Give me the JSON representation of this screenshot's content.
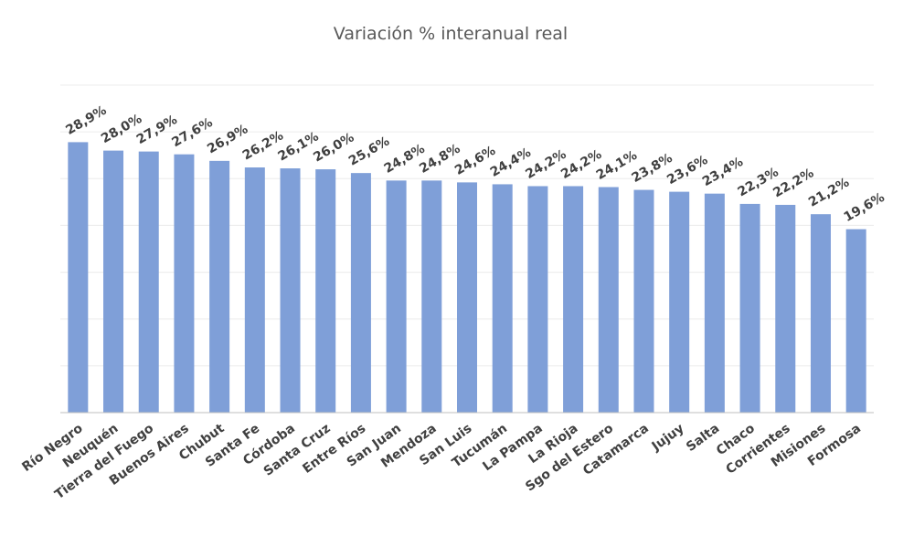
{
  "chart_data": {
    "type": "bar",
    "title": "Variación % interanual real",
    "categories": [
      "Río Negro",
      "Neuquén",
      "Tierra del Fuego",
      "Buenos Aires",
      "Chubut",
      "Santa Fe",
      "Córdoba",
      "Santa Cruz",
      "Entre Ríos",
      "San Juan",
      "Mendoza",
      "San Luis",
      "Tucumán",
      "La Pampa",
      "La Rioja",
      "Sgo del Estero",
      "Catamarca",
      "Jujuy",
      "Salta",
      "Chaco",
      "Corrientes",
      "Misiones",
      "Formosa"
    ],
    "values": [
      28.9,
      28.0,
      27.9,
      27.6,
      26.9,
      26.2,
      26.1,
      26.0,
      25.6,
      24.8,
      24.8,
      24.6,
      24.4,
      24.2,
      24.2,
      24.1,
      23.8,
      23.6,
      23.4,
      22.3,
      22.2,
      21.2,
      19.6
    ],
    "data_labels": [
      "28,9%",
      "28,0%",
      "27,9%",
      "27,6%",
      "26,9%",
      "26,2%",
      "26,1%",
      "26,0%",
      "25,6%",
      "24,8%",
      "24,8%",
      "24,6%",
      "24,4%",
      "24,2%",
      "24,2%",
      "24,1%",
      "23,8%",
      "23,6%",
      "23,4%",
      "22,3%",
      "22,2%",
      "21,2%",
      "19,6%"
    ],
    "ylim": [
      0,
      35
    ],
    "grid": true,
    "legend": "none",
    "xlabel": "",
    "ylabel": "",
    "bar_color": "#7f9fd8"
  }
}
